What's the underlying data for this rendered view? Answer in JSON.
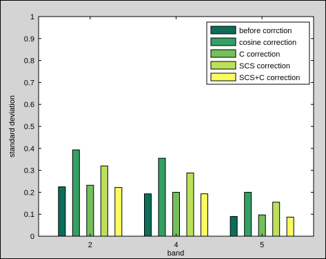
{
  "chart_data": {
    "type": "bar",
    "title": "",
    "xlabel": "band",
    "ylabel": "standard deviation",
    "categories": [
      "2",
      "4",
      "5"
    ],
    "ylim": [
      0,
      1
    ],
    "yticks": [
      "0",
      "0.1",
      "0.2",
      "0.3",
      "0.4",
      "0.5",
      "0.6",
      "0.7",
      "0.8",
      "0.9",
      "1"
    ],
    "legend_position": "top-right",
    "series": [
      {
        "name": "before corrction",
        "color": "#0b6e5a",
        "values": [
          0.225,
          0.193,
          0.09
        ]
      },
      {
        "name": "cosine correction",
        "color": "#34a065",
        "values": [
          0.393,
          0.355,
          0.2
        ]
      },
      {
        "name": "C correction",
        "color": "#74c05a",
        "values": [
          0.232,
          0.2,
          0.097
        ]
      },
      {
        "name": "SCS correction",
        "color": "#bde05a",
        "values": [
          0.32,
          0.288,
          0.155
        ]
      },
      {
        "name": "SCS+C correction",
        "color": "#fbfb5e",
        "values": [
          0.222,
          0.193,
          0.087
        ]
      }
    ]
  }
}
